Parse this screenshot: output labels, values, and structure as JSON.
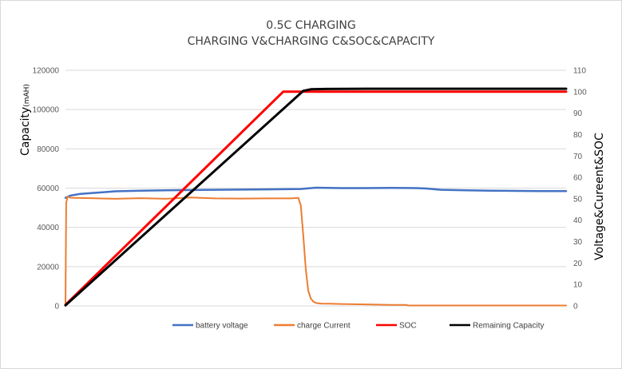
{
  "chart_data": {
    "type": "line",
    "title": "0.5C CHARGING",
    "subtitle": "CHARGING V&CHARGING C&SOC&CAPACITY",
    "ylabel_left": "Capacity",
    "ylabel_left_unit": "(mAH)",
    "ylabel_right": "Voltage&Cureent&SOC",
    "y_left_ticks": [
      "0",
      "20000",
      "40000",
      "60000",
      "80000",
      "100000",
      "120000"
    ],
    "y_right_ticks": [
      "0",
      "10",
      "20",
      "30",
      "40",
      "50",
      "60",
      "70",
      "80",
      "90",
      "100",
      "110"
    ],
    "ylim_left": [
      0,
      120000
    ],
    "ylim_right": [
      0,
      110
    ],
    "xlim": [
      0,
      100
    ],
    "grid": true,
    "legend_position": "bottom",
    "series": [
      {
        "name": "battery voltage",
        "axis": "right",
        "color": "#4472c4",
        "x": [
          0,
          1,
          3,
          6,
          10,
          15,
          20,
          30,
          40,
          47,
          50,
          55,
          60,
          65,
          70,
          72,
          75,
          80,
          85,
          90,
          95,
          100
        ],
        "y": [
          50.5,
          51.5,
          52.3,
          52.8,
          53.5,
          53.8,
          54.0,
          54.2,
          54.4,
          54.6,
          55.2,
          55.0,
          55.0,
          55.1,
          55.0,
          54.8,
          54.2,
          54.0,
          53.8,
          53.7,
          53.6,
          53.6
        ]
      },
      {
        "name": "charge Current",
        "axis": "right",
        "color": "#ed7d31",
        "x": [
          0,
          0.15,
          0.4,
          1,
          5,
          10,
          15,
          20,
          25,
          30,
          35,
          40,
          45,
          46.5,
          47.0,
          47.5,
          48.0,
          48.5,
          49.0,
          49.5,
          50.0,
          51,
          53,
          55,
          60,
          65,
          68,
          68.5,
          70,
          80,
          90,
          100
        ],
        "y": [
          0,
          48,
          51,
          50.5,
          50.3,
          50.0,
          50.3,
          50.0,
          50.6,
          50.2,
          50.1,
          50.2,
          50.2,
          50.4,
          47,
          33,
          17,
          7,
          3.5,
          2.0,
          1.4,
          1.1,
          1.0,
          0.9,
          0.7,
          0.5,
          0.5,
          0.2,
          0.2,
          0.2,
          0.2,
          0.2
        ]
      },
      {
        "name": "SOC",
        "axis": "right",
        "color": "#ff0000",
        "x": [
          0,
          43.5,
          100
        ],
        "y": [
          0.5,
          100,
          100
        ]
      },
      {
        "name": "Remaining Capacity",
        "axis": "left",
        "color": "#000000",
        "x": [
          0,
          47.5,
          49,
          52,
          60,
          70,
          80,
          90,
          100
        ],
        "y": [
          300,
          109500,
          110300,
          110500,
          110600,
          110600,
          110600,
          110600,
          110600
        ]
      }
    ]
  }
}
